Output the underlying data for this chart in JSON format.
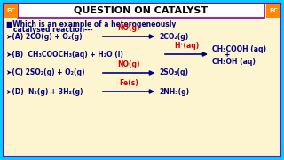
{
  "bg_color": "#fdf5d0",
  "border_color": "#00ccff",
  "border_inner_color": "#8800aa",
  "header_bg": "#ffffff",
  "header_text": "QUESTION ON CATALYST",
  "header_color": "#000000",
  "ec_bg": "#ff8800",
  "blue": "#000080",
  "red": "#cc0000",
  "question_line1": "■Which is an example of a heterogeneously",
  "question_line2": "   catalysed reaction---",
  "opt_A_left": "➤(A) 2CO(g) + O₂(g)",
  "opt_A_cat": "NO(g)",
  "opt_A_right": "2CO₂(g)",
  "opt_B_left": "➤(B)  CH₃COOCH₃(aq) + H₂O (l)",
  "opt_B_cat": "H⁺(aq)",
  "opt_B_right1": "CH₃COOH (aq)",
  "opt_B_plus": "+",
  "opt_B_right2": "CH₃OH (aq)",
  "opt_C_left": "➤(C) 2SO₂(g) + O₂(g)",
  "opt_C_cat": "NO(g)",
  "opt_C_right": "2SO₃(g)",
  "opt_D_left": "➤(D)  N₂(g) + 3H₂(g)",
  "opt_D_cat": "Fe(s)",
  "opt_D_right": "2NH₃(g)"
}
